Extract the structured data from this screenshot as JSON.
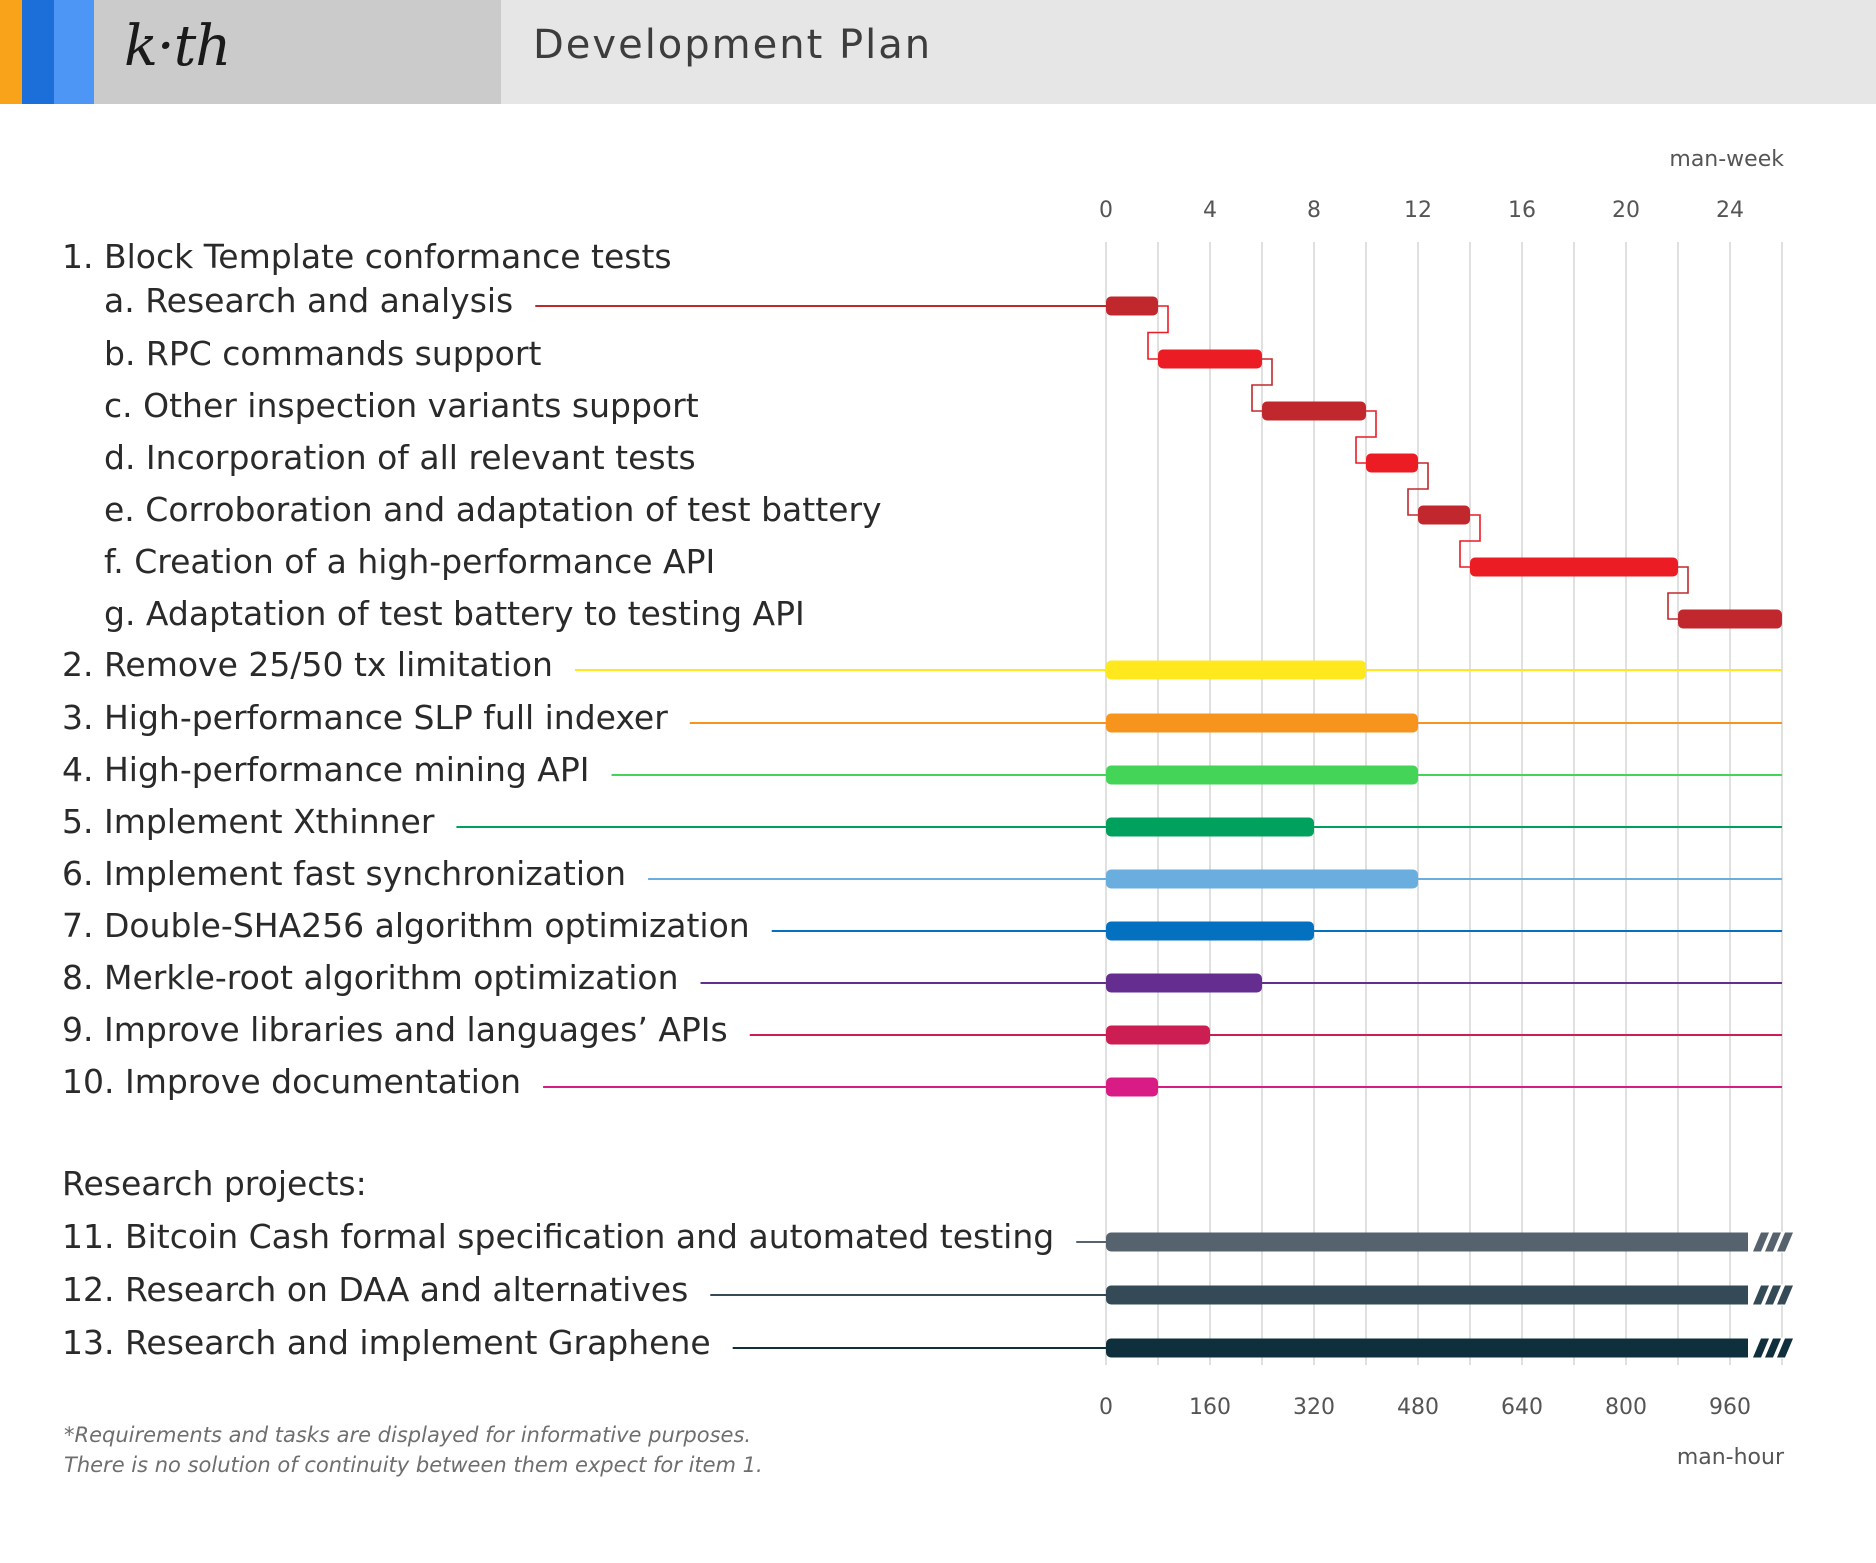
{
  "header": {
    "logo_text": "k·th",
    "title": "Development Plan",
    "stripe_colors": [
      "#f9a31a",
      "#1c6fd8",
      "#4d96f5"
    ]
  },
  "chart_data": {
    "type": "gantt",
    "top_axis": {
      "label": "man-week",
      "min": 0,
      "max": 26,
      "ticks": [
        0,
        4,
        8,
        12,
        16,
        20,
        24
      ]
    },
    "bottom_axis": {
      "label": "man-hour",
      "ticks": [
        0,
        160,
        320,
        480,
        640,
        800,
        960
      ]
    },
    "grid": true,
    "rows": [
      {
        "label": "1. Block Template conformance tests",
        "indent": false
      },
      {
        "label": "a. Research and analysis",
        "indent": true,
        "start": 0,
        "end": 2,
        "color": "#c0282e",
        "line": true,
        "sequential": true
      },
      {
        "label": "b. RPC commands support",
        "indent": true,
        "start": 2,
        "end": 6,
        "color": "#ec1c24",
        "sequential": true
      },
      {
        "label": "c. Other inspection variants support",
        "indent": true,
        "start": 6,
        "end": 10,
        "color": "#c0282e",
        "sequential": true
      },
      {
        "label": "d. Incorporation of all relevant tests",
        "indent": true,
        "start": 10,
        "end": 12,
        "color": "#ec1c24",
        "sequential": true
      },
      {
        "label": "e. Corroboration and adaptation of test battery",
        "indent": true,
        "start": 12,
        "end": 14,
        "color": "#c0282e",
        "sequential": true
      },
      {
        "label": "f. Creation of a high-performance API",
        "indent": true,
        "start": 14,
        "end": 22,
        "color": "#ec1c24",
        "sequential": true
      },
      {
        "label": "g. Adaptation of test battery to testing API",
        "indent": true,
        "start": 22,
        "end": 26,
        "color": "#c0282e",
        "sequential": true
      },
      {
        "label": "2. Remove 25/50 tx limitation",
        "indent": false,
        "start": 0,
        "end": 10,
        "color": "#ffe91e",
        "line": true
      },
      {
        "label": "3. High-performance SLP full indexer",
        "indent": false,
        "start": 0,
        "end": 12,
        "color": "#f7941d",
        "line": true
      },
      {
        "label": "4. High-performance mining API",
        "indent": false,
        "start": 0,
        "end": 12,
        "color": "#44d457",
        "line": true
      },
      {
        "label": "5. Implement Xthinner",
        "indent": false,
        "start": 0,
        "end": 8,
        "color": "#00a15c",
        "line": true
      },
      {
        "label": "6. Implement fast synchronization",
        "indent": false,
        "start": 0,
        "end": 12,
        "color": "#6aaddf",
        "line": true
      },
      {
        "label": "7. Double-SHA256 algorithm optimization",
        "indent": false,
        "start": 0,
        "end": 8,
        "color": "#0471c0",
        "line": true
      },
      {
        "label": "8. Merkle-root algorithm optimization",
        "indent": false,
        "start": 0,
        "end": 6,
        "color": "#662d91",
        "line": true
      },
      {
        "label": "9. Improve libraries and languages’ APIs",
        "indent": false,
        "start": 0,
        "end": 4,
        "color": "#cc1e52",
        "line": true
      },
      {
        "label": "10. Improve documentation",
        "indent": false,
        "start": 0,
        "end": 2,
        "color": "#d91b86",
        "line": true
      },
      {
        "label": "",
        "indent": false
      },
      {
        "label": "Research projects:",
        "indent": false
      },
      {
        "label": "11. Bitcoin Cash formal specification and automated testing",
        "indent": false,
        "start": 0,
        "end": 26,
        "color": "#56636e",
        "line": true,
        "open_ended": true
      },
      {
        "label": "12. Research on DAA and alternatives",
        "indent": false,
        "start": 0,
        "end": 26,
        "color": "#354a57",
        "line": true,
        "open_ended": true
      },
      {
        "label": "13. Research and implement Graphene",
        "indent": false,
        "start": 0,
        "end": 26,
        "color": "#0f2f3d",
        "line": true,
        "open_ended": true
      }
    ]
  },
  "footnote": [
    "*Requirements and tasks are displayed for informative purposes.",
    "There is no solution of continuity between them expect for item 1."
  ]
}
